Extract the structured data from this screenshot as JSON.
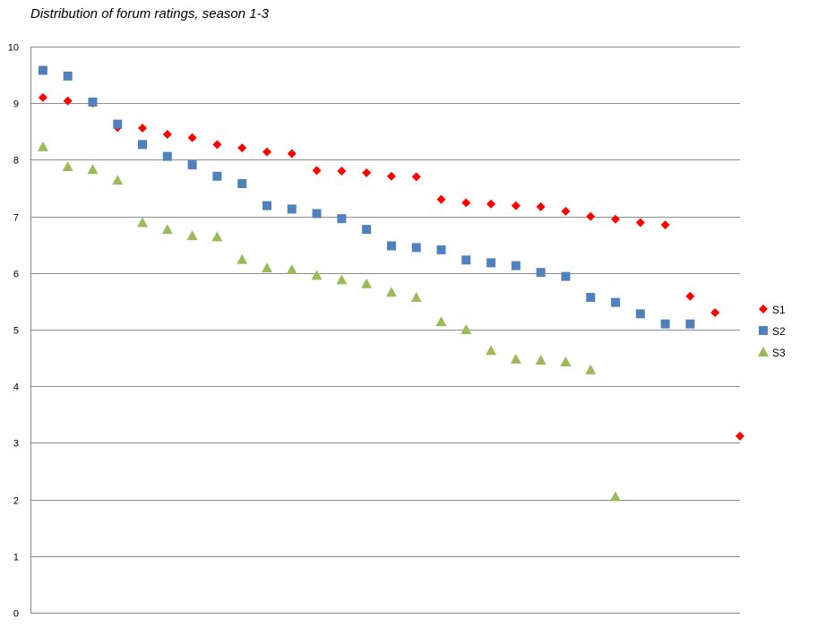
{
  "title": "Distribution of forum ratings, season 1-3",
  "chart_data": {
    "type": "scatter",
    "title": "Distribution of forum ratings, season 1-3",
    "xlabel": "",
    "ylabel": "",
    "ylim": [
      0,
      10
    ],
    "xlim": [
      0.5,
      29
    ],
    "yticks": [
      "0",
      "1",
      "2",
      "3",
      "4",
      "5",
      "6",
      "7",
      "8",
      "9",
      "10"
    ],
    "grid": true,
    "legend_position": "right",
    "series": [
      {
        "name": "S1",
        "marker": "diamond",
        "color": "#ff0000",
        "x": [
          1,
          2,
          3,
          4,
          5,
          6,
          7,
          8,
          9,
          10,
          11,
          12,
          13,
          14,
          15,
          16,
          17,
          18,
          19,
          20,
          21,
          22,
          23,
          24,
          25,
          26,
          27,
          28,
          29
        ],
        "y": [
          9.1,
          9.04,
          9.0,
          8.57,
          8.56,
          8.45,
          8.39,
          8.27,
          8.21,
          8.14,
          8.11,
          7.81,
          7.8,
          7.77,
          7.71,
          7.7,
          7.3,
          7.24,
          7.22,
          7.19,
          7.17,
          7.09,
          7.0,
          6.95,
          6.89,
          6.85,
          5.59,
          5.3,
          3.12
        ]
      },
      {
        "name": "S2",
        "marker": "square",
        "color": "#4f81bd",
        "x": [
          1,
          2,
          3,
          4,
          5,
          6,
          7,
          8,
          9,
          10,
          11,
          12,
          13,
          14,
          15,
          16,
          17,
          18,
          19,
          20,
          21,
          22,
          23,
          24,
          25,
          26,
          27
        ],
        "y": [
          9.58,
          9.48,
          9.02,
          8.63,
          8.27,
          8.06,
          7.91,
          7.71,
          7.58,
          7.19,
          7.13,
          7.05,
          6.96,
          6.77,
          6.48,
          6.45,
          6.41,
          6.23,
          6.18,
          6.13,
          6.01,
          5.94,
          5.57,
          5.48,
          5.28,
          5.1,
          5.1
        ]
      },
      {
        "name": "S3",
        "marker": "triangle",
        "color": "#9bbb59",
        "x": [
          1,
          2,
          3,
          4,
          5,
          6,
          7,
          8,
          9,
          10,
          11,
          12,
          13,
          14,
          15,
          16,
          17,
          18,
          19,
          20,
          21,
          22,
          23,
          24
        ],
        "y": [
          8.23,
          7.88,
          7.83,
          7.64,
          6.89,
          6.77,
          6.66,
          6.64,
          6.24,
          6.09,
          6.06,
          5.96,
          5.88,
          5.81,
          5.66,
          5.57,
          5.14,
          5.0,
          4.63,
          4.48,
          4.46,
          4.43,
          4.29,
          2.05
        ]
      }
    ]
  }
}
